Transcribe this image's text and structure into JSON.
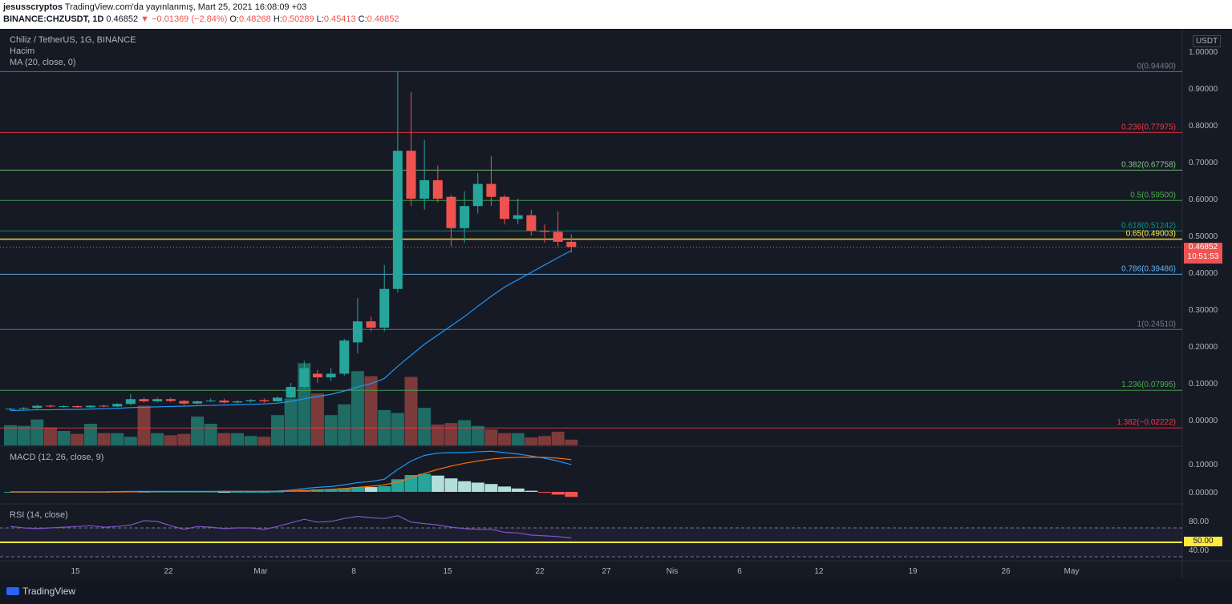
{
  "header": {
    "author": "jesusscryptos",
    "published": "TradingView.com'da yayınlanmış, Mart 25, 2021 16:08:09 +03",
    "symbol": "BINANCE:CHZUSDT, 1D",
    "last": "0.46852",
    "change": "▼ −0.01369 (−2.84%)",
    "o_label": "O:",
    "o_value": "0.48268",
    "h_label": "H:",
    "h_value": "0.50289",
    "l_label": "L:",
    "l_value": "0.45413",
    "c_label": "C:",
    "c_value": "0.46852"
  },
  "legend": {
    "title": "Chiliz / TetherUS, 1G, BINANCE",
    "volume": "Hacim",
    "ma": "MA (20, close, 0)",
    "macd": "MACD (12, 26, close, 9)",
    "rsi": "RSI (14, close)"
  },
  "price_axis": {
    "currency": "USDT",
    "ticks": [
      "1.00000",
      "0.90000",
      "0.80000",
      "0.70000",
      "0.60000",
      "0.50000",
      "0.40000",
      "0.30000",
      "0.20000",
      "0.10000",
      "0.00000"
    ],
    "current_price": "0.46852",
    "countdown": "10:51:53"
  },
  "macd_axis": {
    "ticks": [
      "0.10000",
      "0.00000"
    ]
  },
  "rsi_axis": {
    "ticks": [
      "80.00",
      "40.00"
    ],
    "current": "50.00"
  },
  "time_axis": {
    "labels": [
      "15",
      "22",
      "Mar",
      "8",
      "15",
      "22",
      "27",
      "Nis",
      "6",
      "12",
      "19",
      "26",
      "May"
    ]
  },
  "fib_levels": [
    {
      "label": "0(0.94490)",
      "value": 0.9449,
      "color": "#787b86"
    },
    {
      "label": "0.236(0.77975)",
      "value": 0.77975,
      "color": "#f23645"
    },
    {
      "label": "0.382(0.67758)",
      "value": 0.67758,
      "color": "#81c784"
    },
    {
      "label": "0.5(0.59500)",
      "value": 0.595,
      "color": "#4caf50"
    },
    {
      "label": "0.618(0.51242)",
      "value": 0.51242,
      "color": "#089981"
    },
    {
      "label": "0.65(0.49003)",
      "value": 0.49003,
      "color": "#ffeb3b"
    },
    {
      "label": "0.786(0.39486)",
      "value": 0.39486,
      "color": "#64b5f6"
    },
    {
      "label": "1(0.24510)",
      "value": 0.2451,
      "color": "#787b86"
    },
    {
      "label": "1.236(0.07995)",
      "value": 0.07995,
      "color": "#4caf50"
    },
    {
      "label": "1.382(−0.02222)",
      "value": -0.02222,
      "color": "#f23645"
    }
  ],
  "colors": {
    "up": "#26a69a",
    "down": "#ef5350",
    "ma": "#2196f3",
    "rsi": "#7e57c2",
    "macd_signal": "#ff6d00"
  },
  "chart_data": {
    "type": "candlestick",
    "y_range": [
      -0.06,
      1.06
    ],
    "candles": [
      {
        "o": 0.028,
        "h": 0.032,
        "l": 0.024,
        "c": 0.03
      },
      {
        "o": 0.03,
        "h": 0.034,
        "l": 0.027,
        "c": 0.032
      },
      {
        "o": 0.032,
        "h": 0.04,
        "l": 0.03,
        "c": 0.038
      },
      {
        "o": 0.038,
        "h": 0.041,
        "l": 0.033,
        "c": 0.036
      },
      {
        "o": 0.036,
        "h": 0.039,
        "l": 0.033,
        "c": 0.037
      },
      {
        "o": 0.037,
        "h": 0.039,
        "l": 0.033,
        "c": 0.034
      },
      {
        "o": 0.034,
        "h": 0.04,
        "l": 0.032,
        "c": 0.038
      },
      {
        "o": 0.038,
        "h": 0.041,
        "l": 0.034,
        "c": 0.036
      },
      {
        "o": 0.036,
        "h": 0.045,
        "l": 0.034,
        "c": 0.043
      },
      {
        "o": 0.043,
        "h": 0.07,
        "l": 0.04,
        "c": 0.056
      },
      {
        "o": 0.056,
        "h": 0.06,
        "l": 0.047,
        "c": 0.05
      },
      {
        "o": 0.05,
        "h": 0.06,
        "l": 0.047,
        "c": 0.056
      },
      {
        "o": 0.056,
        "h": 0.06,
        "l": 0.048,
        "c": 0.051
      },
      {
        "o": 0.051,
        "h": 0.054,
        "l": 0.04,
        "c": 0.044
      },
      {
        "o": 0.044,
        "h": 0.052,
        "l": 0.042,
        "c": 0.05
      },
      {
        "o": 0.05,
        "h": 0.058,
        "l": 0.048,
        "c": 0.052
      },
      {
        "o": 0.052,
        "h": 0.057,
        "l": 0.044,
        "c": 0.047
      },
      {
        "o": 0.047,
        "h": 0.053,
        "l": 0.044,
        "c": 0.05
      },
      {
        "o": 0.05,
        "h": 0.056,
        "l": 0.047,
        "c": 0.053
      },
      {
        "o": 0.053,
        "h": 0.058,
        "l": 0.046,
        "c": 0.05
      },
      {
        "o": 0.05,
        "h": 0.063,
        "l": 0.048,
        "c": 0.06
      },
      {
        "o": 0.06,
        "h": 0.1,
        "l": 0.058,
        "c": 0.089
      },
      {
        "o": 0.089,
        "h": 0.16,
        "l": 0.085,
        "c": 0.14
      },
      {
        "o": 0.125,
        "h": 0.135,
        "l": 0.1,
        "c": 0.115
      },
      {
        "o": 0.115,
        "h": 0.14,
        "l": 0.105,
        "c": 0.125
      },
      {
        "o": 0.125,
        "h": 0.22,
        "l": 0.12,
        "c": 0.215
      },
      {
        "o": 0.21,
        "h": 0.33,
        "l": 0.18,
        "c": 0.267
      },
      {
        "o": 0.267,
        "h": 0.28,
        "l": 0.24,
        "c": 0.25
      },
      {
        "o": 0.25,
        "h": 0.42,
        "l": 0.24,
        "c": 0.355
      },
      {
        "o": 0.355,
        "h": 0.944,
        "l": 0.345,
        "c": 0.73
      },
      {
        "o": 0.73,
        "h": 0.89,
        "l": 0.58,
        "c": 0.6
      },
      {
        "o": 0.6,
        "h": 0.76,
        "l": 0.57,
        "c": 0.65
      },
      {
        "o": 0.65,
        "h": 0.69,
        "l": 0.59,
        "c": 0.6
      },
      {
        "o": 0.605,
        "h": 0.61,
        "l": 0.47,
        "c": 0.52
      },
      {
        "o": 0.52,
        "h": 0.62,
        "l": 0.48,
        "c": 0.58
      },
      {
        "o": 0.58,
        "h": 0.67,
        "l": 0.56,
        "c": 0.64
      },
      {
        "o": 0.64,
        "h": 0.715,
        "l": 0.58,
        "c": 0.605
      },
      {
        "o": 0.605,
        "h": 0.61,
        "l": 0.53,
        "c": 0.545
      },
      {
        "o": 0.545,
        "h": 0.6,
        "l": 0.53,
        "c": 0.555
      },
      {
        "o": 0.555,
        "h": 0.57,
        "l": 0.5,
        "c": 0.513
      },
      {
        "o": 0.513,
        "h": 0.53,
        "l": 0.48,
        "c": 0.51
      },
      {
        "o": 0.51,
        "h": 0.565,
        "l": 0.47,
        "c": 0.483
      },
      {
        "o": 0.483,
        "h": 0.503,
        "l": 0.454,
        "c": 0.469
      }
    ],
    "volume": [
      0.28,
      0.27,
      0.36,
      0.25,
      0.2,
      0.16,
      0.3,
      0.17,
      0.17,
      0.12,
      0.55,
      0.17,
      0.14,
      0.16,
      0.4,
      0.3,
      0.17,
      0.17,
      0.13,
      0.12,
      0.42,
      0.65,
      1.14,
      0.72,
      0.42,
      0.57,
      1.03,
      0.96,
      0.49,
      0.45,
      0.95,
      0.52,
      0.29,
      0.31,
      0.35,
      0.27,
      0.22,
      0.17,
      0.17,
      0.11,
      0.13,
      0.19,
      0.08
    ],
    "ma20": [
      0.025,
      0.026,
      0.027,
      0.027,
      0.028,
      0.028,
      0.029,
      0.03,
      0.031,
      0.033,
      0.034,
      0.035,
      0.036,
      0.037,
      0.038,
      0.039,
      0.04,
      0.041,
      0.042,
      0.043,
      0.045,
      0.05,
      0.057,
      0.063,
      0.069,
      0.078,
      0.089,
      0.098,
      0.112,
      0.145,
      0.175,
      0.205,
      0.23,
      0.255,
      0.28,
      0.308,
      0.335,
      0.36,
      0.38,
      0.4,
      0.42,
      0.44,
      0.459
    ],
    "macd": [
      0.0,
      0.0,
      0.0,
      0.0,
      0.0,
      0.0,
      0.0,
      0.0,
      0.001,
      0.002,
      0.002,
      0.002,
      0.002,
      0.002,
      0.002,
      0.002,
      0.002,
      0.002,
      0.002,
      0.002,
      0.003,
      0.006,
      0.012,
      0.016,
      0.019,
      0.025,
      0.033,
      0.037,
      0.045,
      0.08,
      0.11,
      0.13,
      0.138,
      0.14,
      0.14,
      0.143,
      0.145,
      0.14,
      0.135,
      0.128,
      0.12,
      0.11,
      0.097
    ],
    "signal": [
      0.0,
      0.0,
      0.0,
      0.0,
      0.0,
      0.0,
      0.0,
      0.0,
      0.0,
      0.0,
      0.001,
      0.001,
      0.001,
      0.001,
      0.001,
      0.001,
      0.002,
      0.002,
      0.002,
      0.002,
      0.002,
      0.003,
      0.005,
      0.007,
      0.009,
      0.012,
      0.016,
      0.02,
      0.025,
      0.035,
      0.05,
      0.066,
      0.08,
      0.092,
      0.102,
      0.11,
      0.117,
      0.121,
      0.123,
      0.124,
      0.123,
      0.12,
      0.115
    ],
    "rsi": [
      72,
      70,
      69,
      70,
      71,
      72,
      73,
      71,
      72,
      74,
      80,
      79,
      73,
      68,
      72,
      71,
      69,
      70,
      70,
      68,
      72,
      77,
      82,
      78,
      79,
      83,
      86,
      84,
      83,
      87,
      78,
      76,
      74,
      71,
      69,
      68,
      68,
      64,
      63,
      60,
      59,
      58,
      56
    ]
  }
}
